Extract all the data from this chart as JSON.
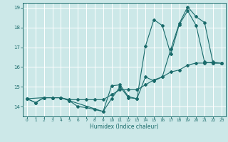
{
  "xlabel": "Humidex (Indice chaleur)",
  "bg_color": "#cce8e8",
  "grid_color": "#ffffff",
  "line_color": "#1a6b6b",
  "xlim": [
    -0.5,
    23.5
  ],
  "ylim": [
    13.5,
    19.25
  ],
  "xticks": [
    0,
    1,
    2,
    3,
    4,
    5,
    6,
    7,
    8,
    9,
    10,
    11,
    12,
    13,
    14,
    15,
    16,
    17,
    18,
    19,
    20,
    21,
    22,
    23
  ],
  "yticks": [
    14,
    15,
    16,
    17,
    18,
    19
  ],
  "line1_x": [
    0,
    1,
    2,
    3,
    4,
    5,
    6,
    7,
    8,
    9,
    10,
    11,
    12,
    13,
    14,
    15,
    16,
    17,
    18,
    19,
    20,
    21,
    22,
    23
  ],
  "line1_y": [
    14.4,
    14.2,
    14.45,
    14.45,
    14.45,
    14.3,
    14.0,
    13.95,
    13.85,
    13.75,
    14.4,
    15.0,
    14.45,
    14.4,
    17.05,
    18.4,
    18.1,
    16.65,
    18.15,
    18.85,
    18.1,
    16.25,
    16.2,
    16.2
  ],
  "line2_x": [
    0,
    2,
    3,
    4,
    5,
    9,
    10,
    11,
    12,
    13,
    14,
    15,
    16,
    17,
    18,
    19,
    20,
    21,
    22,
    23
  ],
  "line2_y": [
    14.4,
    14.45,
    14.45,
    14.45,
    14.3,
    13.75,
    15.05,
    15.1,
    14.5,
    14.4,
    15.5,
    15.3,
    15.5,
    16.9,
    18.2,
    19.05,
    18.55,
    18.25,
    16.2,
    16.2
  ],
  "line3_x": [
    0,
    1,
    2,
    3,
    4,
    5,
    6,
    7,
    8,
    9,
    10,
    11,
    12,
    13,
    14,
    15,
    16,
    17,
    18,
    19,
    20,
    21,
    22,
    23
  ],
  "line3_y": [
    14.4,
    14.2,
    14.45,
    14.45,
    14.45,
    14.35,
    14.35,
    14.35,
    14.35,
    14.35,
    14.6,
    14.85,
    14.85,
    14.85,
    15.1,
    15.35,
    15.5,
    15.75,
    15.85,
    16.1,
    16.2,
    16.2,
    16.25,
    16.2
  ]
}
